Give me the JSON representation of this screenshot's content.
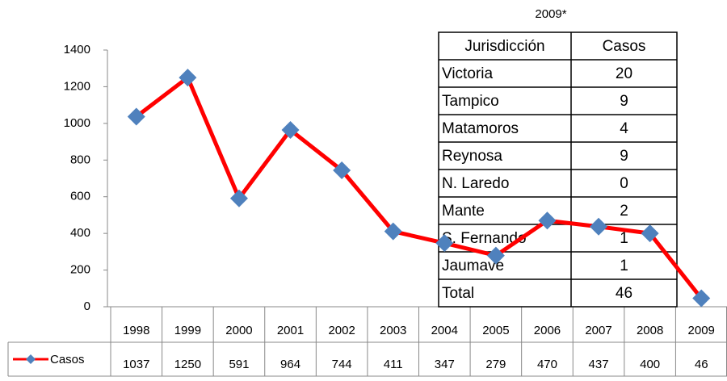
{
  "chart_data": {
    "type": "line",
    "categories": [
      "1998",
      "1999",
      "2000",
      "2001",
      "2002",
      "2003",
      "2004",
      "2005",
      "2006",
      "2007",
      "2008",
      "2009"
    ],
    "series": [
      {
        "name": "Casos",
        "color": "#ff0000",
        "marker_color": "#4f81bd",
        "values": [
          1037,
          1250,
          591,
          964,
          744,
          411,
          347,
          279,
          470,
          437,
          400,
          46
        ]
      }
    ],
    "ylim": [
      0,
      1400
    ],
    "yticks": [
      0,
      200,
      400,
      600,
      800,
      1000,
      1200,
      1400
    ],
    "grid": false
  },
  "table": {
    "title": "2009*",
    "header": [
      "Jurisdicción",
      "Casos"
    ],
    "rows": [
      [
        "Victoria",
        20
      ],
      [
        "Tampico",
        9
      ],
      [
        "Matamoros",
        4
      ],
      [
        "Reynosa",
        9
      ],
      [
        "N. Laredo",
        0
      ],
      [
        "Mante",
        2
      ],
      [
        "S. Fernando",
        1
      ],
      [
        "Jaumave",
        1
      ],
      [
        "Total",
        46
      ]
    ]
  }
}
